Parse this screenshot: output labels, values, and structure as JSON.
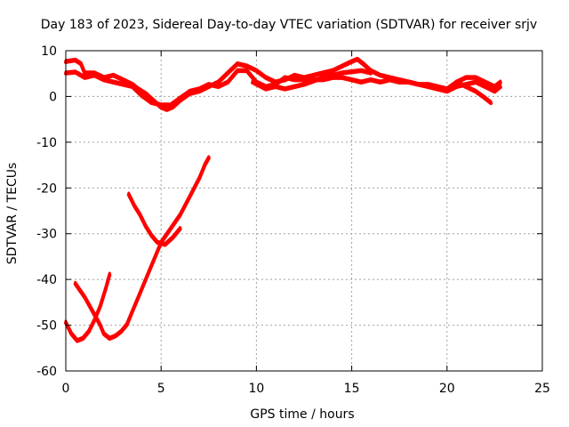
{
  "chart_data": {
    "type": "line",
    "title": "Day 183 of 2023, Sidereal Day-to-day VTEC variation (SDTVAR) for receiver srjv",
    "xlabel": "GPS time / hours",
    "ylabel": "SDTVAR / TECUs",
    "xlim": [
      0,
      25
    ],
    "ylim": [
      -60,
      10
    ],
    "xticks": [
      "0",
      "5",
      "10",
      "15",
      "20",
      "25"
    ],
    "xtick_values": [
      0,
      5,
      10,
      15,
      20,
      25
    ],
    "yticks": [
      "10",
      "0",
      "-10",
      "-20",
      "-30",
      "-40",
      "-50",
      "-60"
    ],
    "ytick_values": [
      10,
      0,
      -10,
      -20,
      -30,
      -40,
      -50,
      -60
    ],
    "grid": true,
    "legend": "none",
    "series_color": "#ff0000",
    "series": [
      {
        "values": [
          [
            0,
            7.5
          ],
          [
            0.5,
            7.8
          ],
          [
            0.8,
            7.0
          ],
          [
            1.0,
            5.0
          ],
          [
            1.5,
            5.0
          ],
          [
            2.0,
            4.0
          ],
          [
            2.5,
            4.5
          ],
          [
            3.0,
            3.5
          ],
          [
            3.5,
            2.5
          ],
          [
            3.8,
            1.5
          ],
          [
            4.2,
            0.5
          ],
          [
            4.6,
            -1.0
          ],
          [
            5.0,
            -2.5
          ],
          [
            5.3,
            -3.0
          ],
          [
            5.6,
            -2.5
          ],
          [
            6.0,
            -1.0
          ],
          [
            6.5,
            0.5
          ],
          [
            7.0,
            1.0
          ],
          [
            7.5,
            2.0
          ],
          [
            8.0,
            3.0
          ],
          [
            8.5,
            5.0
          ],
          [
            9.0,
            7.0
          ],
          [
            9.5,
            6.5
          ],
          [
            10.0,
            5.5
          ],
          [
            10.5,
            4.0
          ],
          [
            11.0,
            3.0
          ],
          [
            11.5,
            3.5
          ],
          [
            12.0,
            4.5
          ],
          [
            12.5,
            4.0
          ],
          [
            13.0,
            4.5
          ],
          [
            13.5,
            5.0
          ],
          [
            14.0,
            5.5
          ],
          [
            14.5,
            6.5
          ],
          [
            15.0,
            7.5
          ],
          [
            15.3,
            8.0
          ],
          [
            15.6,
            7.0
          ],
          [
            16.0,
            5.5
          ],
          [
            16.5,
            4.5
          ],
          [
            17.0,
            4.0
          ],
          [
            17.5,
            3.5
          ],
          [
            18.0,
            3.0
          ],
          [
            18.5,
            2.5
          ],
          [
            19.0,
            2.0
          ],
          [
            19.5,
            1.5
          ],
          [
            20.0,
            1.0
          ],
          [
            20.5,
            2.0
          ],
          [
            21.0,
            2.5
          ],
          [
            21.5,
            3.0
          ],
          [
            22.0,
            2.0
          ],
          [
            22.5,
            1.0
          ],
          [
            22.8,
            2.0
          ]
        ]
      },
      {
        "values": [
          [
            0,
            5.0
          ],
          [
            0.5,
            5.2
          ],
          [
            1.0,
            4.0
          ],
          [
            1.5,
            4.5
          ],
          [
            2.0,
            3.5
          ],
          [
            2.5,
            3.0
          ],
          [
            3.0,
            2.5
          ],
          [
            3.5,
            2.0
          ],
          [
            4.0,
            0.0
          ],
          [
            4.5,
            -1.5
          ],
          [
            5.0,
            -2.0
          ],
          [
            5.5,
            -2.0
          ],
          [
            6.0,
            -0.5
          ],
          [
            6.5,
            1.0
          ],
          [
            7.0,
            1.5
          ],
          [
            7.5,
            2.5
          ],
          [
            8.0,
            2.0
          ],
          [
            8.5,
            3.0
          ],
          [
            9.0,
            5.5
          ],
          [
            9.5,
            5.5
          ],
          [
            10.0,
            3.0
          ],
          [
            10.5,
            2.0
          ],
          [
            11.0,
            2.5
          ],
          [
            11.5,
            4.0
          ],
          [
            12.0,
            3.5
          ],
          [
            12.5,
            3.5
          ],
          [
            13.0,
            3.5
          ],
          [
            13.5,
            3.5
          ],
          [
            14.0,
            4.0
          ],
          [
            14.5,
            4.0
          ],
          [
            15.0,
            3.5
          ],
          [
            15.5,
            3.0
          ],
          [
            16.0,
            3.5
          ],
          [
            16.5,
            3.0
          ],
          [
            17.0,
            3.5
          ],
          [
            17.5,
            3.0
          ],
          [
            18.0,
            3.0
          ],
          [
            18.5,
            2.5
          ],
          [
            19.0,
            2.5
          ],
          [
            19.5,
            2.0
          ],
          [
            20.0,
            1.5
          ],
          [
            20.5,
            3.0
          ],
          [
            21.0,
            4.0
          ],
          [
            21.5,
            4.0
          ],
          [
            22.0,
            3.0
          ],
          [
            22.5,
            2.0
          ],
          [
            22.8,
            3.0
          ]
        ]
      },
      {
        "values": [
          [
            9.8,
            3.0
          ],
          [
            10.5,
            1.5
          ],
          [
            11.0,
            2.0
          ],
          [
            11.5,
            1.5
          ],
          [
            12.5,
            2.5
          ],
          [
            13.5,
            4.0
          ],
          [
            14.5,
            5.0
          ],
          [
            15.5,
            5.5
          ],
          [
            16.0,
            5.0
          ]
        ]
      },
      {
        "values": [
          [
            20.5,
            3.0
          ],
          [
            21.0,
            2.0
          ],
          [
            21.5,
            1.0
          ],
          [
            22.0,
            -0.5
          ],
          [
            22.3,
            -1.5
          ]
        ]
      },
      {
        "values": [
          [
            0.5,
            -41
          ],
          [
            1.0,
            -44
          ],
          [
            1.4,
            -47
          ],
          [
            1.8,
            -50
          ],
          [
            2.0,
            -52
          ],
          [
            2.3,
            -53
          ],
          [
            2.6,
            -52.5
          ],
          [
            2.9,
            -51.5
          ],
          [
            3.2,
            -50
          ],
          [
            3.5,
            -47
          ],
          [
            3.8,
            -44
          ],
          [
            4.1,
            -41
          ],
          [
            4.4,
            -38
          ],
          [
            4.7,
            -35
          ],
          [
            5.0,
            -32
          ],
          [
            5.5,
            -29
          ],
          [
            6.0,
            -26
          ],
          [
            6.5,
            -22
          ],
          [
            7.0,
            -18
          ],
          [
            7.3,
            -15
          ],
          [
            7.5,
            -13.5
          ]
        ]
      },
      {
        "values": [
          [
            0,
            -49.5
          ],
          [
            0.3,
            -52
          ],
          [
            0.6,
            -53.5
          ],
          [
            0.9,
            -53
          ],
          [
            1.2,
            -51.5
          ],
          [
            1.5,
            -49
          ],
          [
            1.8,
            -46
          ],
          [
            2.1,
            -42
          ],
          [
            2.3,
            -39
          ]
        ]
      },
      {
        "values": [
          [
            3.3,
            -21.5
          ],
          [
            3.6,
            -24
          ],
          [
            3.9,
            -26
          ],
          [
            4.2,
            -28.5
          ],
          [
            4.5,
            -30.5
          ],
          [
            4.8,
            -32
          ],
          [
            5.2,
            -32.5
          ],
          [
            5.6,
            -31
          ],
          [
            6.0,
            -29
          ]
        ]
      }
    ]
  }
}
